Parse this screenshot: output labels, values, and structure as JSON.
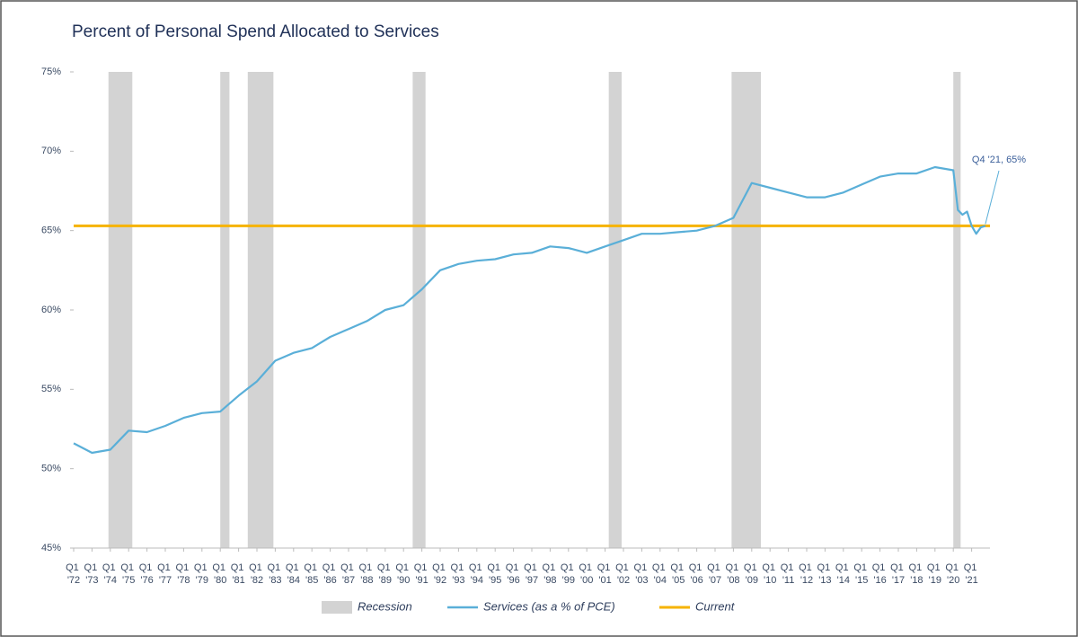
{
  "chart_data": {
    "type": "line",
    "title": "Percent of Personal Spend Allocated to Services",
    "x": [
      1972,
      1973,
      1974,
      1975,
      1976,
      1977,
      1978,
      1979,
      1980,
      1981,
      1982,
      1983,
      1984,
      1985,
      1986,
      1987,
      1988,
      1989,
      1990,
      1991,
      1992,
      1993,
      1994,
      1995,
      1996,
      1997,
      1998,
      1999,
      2000,
      2001,
      2002,
      2003,
      2004,
      2005,
      2006,
      2007,
      2008,
      2009,
      2010,
      2011,
      2012,
      2013,
      2014,
      2015,
      2016,
      2017,
      2018,
      2019,
      2020,
      2020.25,
      2020.5,
      2020.75,
      2021,
      2021.25,
      2021.5,
      2021.75
    ],
    "series": [
      {
        "name": "Services (as a % of PCE)",
        "color": "#5aafd8",
        "values": [
          51.6,
          51.0,
          51.2,
          52.4,
          52.3,
          52.7,
          53.2,
          53.5,
          53.6,
          54.6,
          55.5,
          56.8,
          57.3,
          57.6,
          58.3,
          58.8,
          59.3,
          60.0,
          60.3,
          61.3,
          62.5,
          62.9,
          63.1,
          63.2,
          63.5,
          63.6,
          64.0,
          63.9,
          63.6,
          64.0,
          64.4,
          64.8,
          64.8,
          64.9,
          65.0,
          65.3,
          65.8,
          68.0,
          67.7,
          67.4,
          67.1,
          67.1,
          67.4,
          67.9,
          68.4,
          68.6,
          68.6,
          69.0,
          68.8,
          66.3,
          66.0,
          66.2,
          65.3,
          64.8,
          65.2,
          65.3
        ]
      }
    ],
    "current": {
      "name": "Current",
      "color": "#f6b300",
      "value": 65.3
    },
    "recession": {
      "name": "Recession",
      "color": "#d3d3d3",
      "periods": [
        [
          1973.9,
          1975.2
        ],
        [
          1980.0,
          1980.5
        ],
        [
          1981.5,
          1982.9
        ],
        [
          1990.5,
          1991.2
        ],
        [
          2001.2,
          2001.9
        ],
        [
          2007.9,
          2009.5
        ],
        [
          2020.0,
          2020.4
        ]
      ]
    },
    "annotation": "Q4 '21, 65%",
    "xlim": [
      1972,
      2022
    ],
    "xticks": [
      {
        "value": 1972,
        "label": "Q1 '72"
      },
      {
        "value": 1973,
        "label": "Q1 '73"
      },
      {
        "value": 1974,
        "label": "Q1 '74"
      },
      {
        "value": 1975,
        "label": "Q1 '75"
      },
      {
        "value": 1976,
        "label": "Q1 '76"
      },
      {
        "value": 1977,
        "label": "Q1 '77"
      },
      {
        "value": 1978,
        "label": "Q1 '78"
      },
      {
        "value": 1979,
        "label": "Q1 '79"
      },
      {
        "value": 1980,
        "label": "Q1 '80"
      },
      {
        "value": 1981,
        "label": "Q1 '81"
      },
      {
        "value": 1982,
        "label": "Q1 '82"
      },
      {
        "value": 1983,
        "label": "Q1 '83"
      },
      {
        "value": 1984,
        "label": "Q1 '84"
      },
      {
        "value": 1985,
        "label": "Q1 '85"
      },
      {
        "value": 1986,
        "label": "Q1 '86"
      },
      {
        "value": 1987,
        "label": "Q1 '87"
      },
      {
        "value": 1988,
        "label": "Q1 '88"
      },
      {
        "value": 1989,
        "label": "Q1 '89"
      },
      {
        "value": 1990,
        "label": "Q1 '90"
      },
      {
        "value": 1991,
        "label": "Q1 '91"
      },
      {
        "value": 1992,
        "label": "Q1 '92"
      },
      {
        "value": 1993,
        "label": "Q1 '93"
      },
      {
        "value": 1994,
        "label": "Q1 '94"
      },
      {
        "value": 1995,
        "label": "Q1 '95"
      },
      {
        "value": 1996,
        "label": "Q1 '96"
      },
      {
        "value": 1997,
        "label": "Q1 '97"
      },
      {
        "value": 1998,
        "label": "Q1 '98"
      },
      {
        "value": 1999,
        "label": "Q1 '99"
      },
      {
        "value": 2000,
        "label": "Q1 '00"
      },
      {
        "value": 2001,
        "label": "Q1 '01"
      },
      {
        "value": 2002,
        "label": "Q1 '02"
      },
      {
        "value": 2003,
        "label": "Q1 '03"
      },
      {
        "value": 2004,
        "label": "Q1 '04"
      },
      {
        "value": 2005,
        "label": "Q1 '05"
      },
      {
        "value": 2006,
        "label": "Q1 '06"
      },
      {
        "value": 2007,
        "label": "Q1 '07"
      },
      {
        "value": 2008,
        "label": "Q1 '08"
      },
      {
        "value": 2009,
        "label": "Q1 '09"
      },
      {
        "value": 2010,
        "label": "Q1 '10"
      },
      {
        "value": 2011,
        "label": "Q1 '11"
      },
      {
        "value": 2012,
        "label": "Q1 '12"
      },
      {
        "value": 2013,
        "label": "Q1 '13"
      },
      {
        "value": 2014,
        "label": "Q1 '14"
      },
      {
        "value": 2015,
        "label": "Q1 '15"
      },
      {
        "value": 2016,
        "label": "Q1 '16"
      },
      {
        "value": 2017,
        "label": "Q1 '17"
      },
      {
        "value": 2018,
        "label": "Q1 '18"
      },
      {
        "value": 2019,
        "label": "Q1 '19"
      },
      {
        "value": 2020,
        "label": "Q1 '20"
      },
      {
        "value": 2021,
        "label": "Q1 '21"
      }
    ],
    "ylim": [
      45,
      75
    ],
    "yticks": [
      {
        "value": 45,
        "label": "45%"
      },
      {
        "value": 50,
        "label": "50%"
      },
      {
        "value": 55,
        "label": "55%"
      },
      {
        "value": 60,
        "label": "60%"
      },
      {
        "value": 65,
        "label": "65%"
      },
      {
        "value": 70,
        "label": "70%"
      },
      {
        "value": 75,
        "label": "75%"
      }
    ]
  }
}
